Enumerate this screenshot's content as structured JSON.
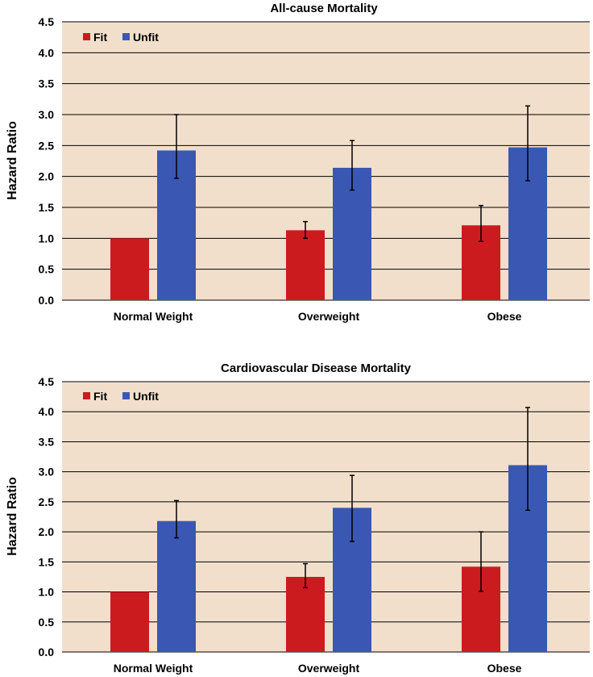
{
  "colors": {
    "plot_background": "#f2dfcb",
    "grid": "#000000",
    "fit": "#cc1b1f",
    "unfit": "#3a58b3",
    "error_bar": "#000000"
  },
  "chart_data": [
    {
      "type": "bar",
      "title": "All-cause Mortality",
      "ylabel": "Hazard Ratio",
      "xlabel": "",
      "ylim": [
        0,
        4.5
      ],
      "yticks": [
        "0.0",
        "0.5",
        "1.0",
        "1.5",
        "2.0",
        "2.5",
        "3.0",
        "3.5",
        "4.0",
        "4.5"
      ],
      "grid": true,
      "legend_position": "top-left",
      "categories": [
        "Normal Weight",
        "Overweight",
        "Obese"
      ],
      "series": [
        {
          "name": "Fit",
          "values": [
            1.0,
            1.13,
            1.21
          ],
          "err_low": [
            null,
            1.0,
            0.95
          ],
          "err_high": [
            null,
            1.27,
            1.53
          ]
        },
        {
          "name": "Unfit",
          "values": [
            2.42,
            2.14,
            2.47
          ],
          "err_low": [
            1.97,
            1.78,
            1.93
          ],
          "err_high": [
            3.0,
            2.58,
            3.14
          ]
        }
      ]
    },
    {
      "type": "bar",
      "title": "Cardiovascular Disease Mortality",
      "ylabel": "Hazard Ratio",
      "xlabel": "",
      "ylim": [
        0,
        4.5
      ],
      "yticks": [
        "0.0",
        "0.5",
        "1.0",
        "1.5",
        "2.0",
        "2.5",
        "3.0",
        "3.5",
        "4.0",
        "4.5"
      ],
      "grid": true,
      "legend_position": "top-left",
      "categories": [
        "Normal Weight",
        "Overweight",
        "Obese"
      ],
      "series": [
        {
          "name": "Fit",
          "values": [
            1.0,
            1.25,
            1.42
          ],
          "err_low": [
            null,
            1.07,
            1.01
          ],
          "err_high": [
            null,
            1.47,
            2.0
          ]
        },
        {
          "name": "Unfit",
          "values": [
            2.18,
            2.4,
            3.11
          ],
          "err_low": [
            1.9,
            1.84,
            2.36
          ],
          "err_high": [
            2.52,
            2.94,
            4.07
          ]
        }
      ]
    }
  ]
}
